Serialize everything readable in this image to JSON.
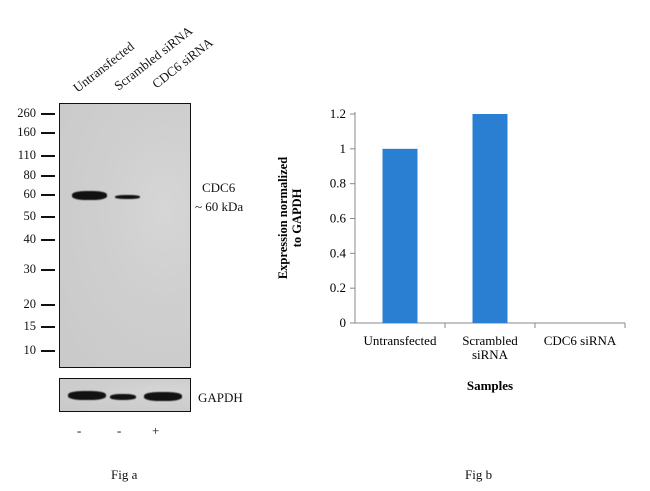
{
  "fig_a": {
    "lanes": [
      "Untransfected",
      "Scrambled siRNA",
      "CDC6 siRNA"
    ],
    "markers": [
      "260",
      "160",
      "110",
      "80",
      "60",
      "50",
      "40",
      "30",
      "20",
      "15",
      "10"
    ],
    "target_label": "CDC6",
    "target_size": "~ 60 kDa",
    "loading_control": "GAPDH",
    "treatment_signs": [
      "-",
      "-",
      "+"
    ],
    "caption": "Fig a"
  },
  "fig_b": {
    "caption": "Fig b"
  },
  "chart_data": {
    "type": "bar",
    "categories": [
      "Untransfected",
      "Scrambled siRNA",
      "CDC6  siRNA"
    ],
    "values": [
      1.0,
      1.2,
      0
    ],
    "xlabel": "Samples",
    "ylabel_lines": [
      "Expression normalized",
      "to GAPDH"
    ],
    "yticks": [
      "0",
      "0.2",
      "0.4",
      "0.6",
      "0.8",
      "1",
      "1.2"
    ],
    "ylim": [
      0,
      1.2
    ],
    "bar_color": "#2a7fd3",
    "grid": false
  }
}
